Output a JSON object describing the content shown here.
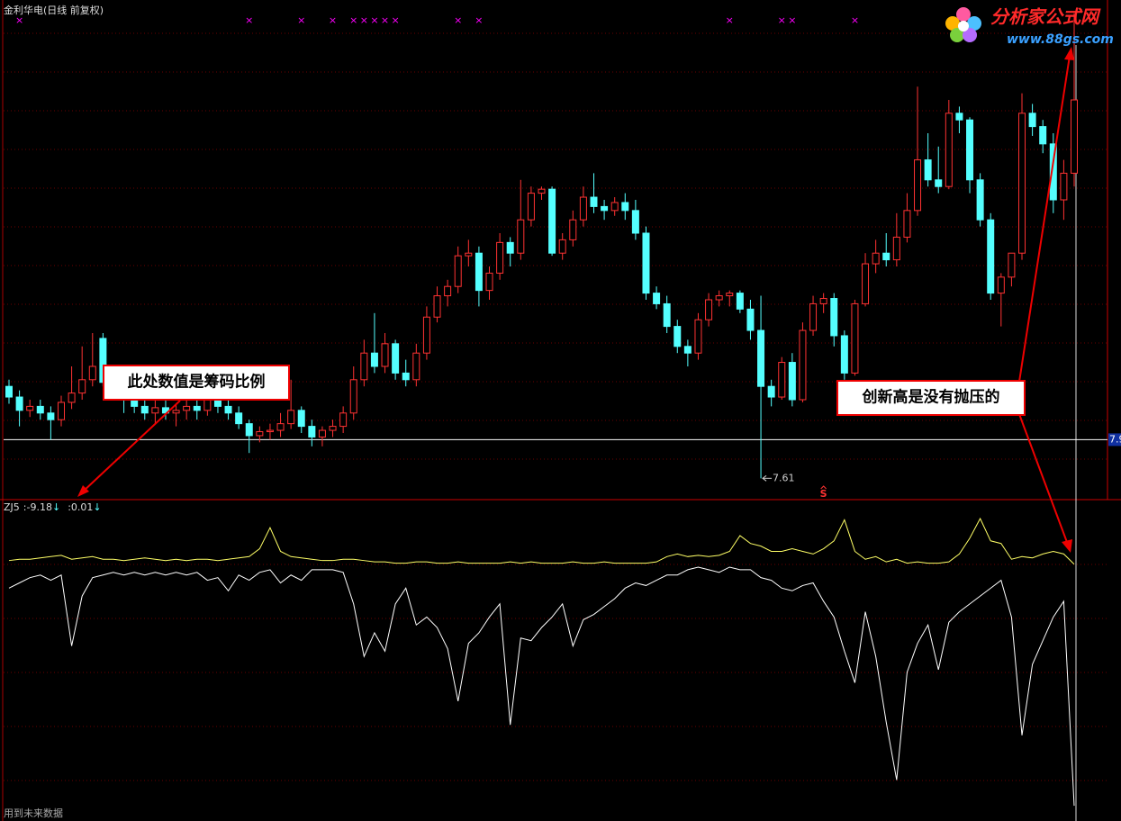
{
  "window": {
    "footer": "用到未来数据"
  },
  "annotations": [
    "此处数值是筹码比例",
    "创新高是没有抛压的"
  ],
  "logo": {
    "name": "分析家公式网",
    "url": "www.88gs.com"
  },
  "chart_data": [
    {
      "type": "candlestick",
      "title": "金利华电(日线 前复权)",
      "ylim": [
        7.45,
        11.2
      ],
      "up_color": "#ff3232",
      "down_color": "#54ffff",
      "price_line": 7.9,
      "signal_symbol": "×",
      "signal_color": "#ff00ff",
      "signal_bars": [
        1,
        23,
        28,
        31,
        33,
        34,
        35,
        36,
        37,
        43,
        45,
        69,
        74,
        75,
        81
      ],
      "sell_symbol": "S",
      "sell_bar": 78,
      "candles": [
        [
          8.3,
          8.35,
          8.17,
          8.22
        ],
        [
          8.22,
          8.27,
          8.0,
          8.12
        ],
        [
          8.12,
          8.2,
          8.07,
          8.15
        ],
        [
          8.15,
          8.2,
          8.05,
          8.1
        ],
        [
          8.1,
          8.15,
          7.9,
          8.05
        ],
        [
          8.05,
          8.23,
          8.0,
          8.18
        ],
        [
          8.18,
          8.45,
          8.13,
          8.25
        ],
        [
          8.25,
          8.6,
          8.2,
          8.35
        ],
        [
          8.35,
          8.7,
          8.3,
          8.45
        ],
        [
          8.66,
          8.7,
          8.3,
          8.33
        ],
        [
          8.33,
          8.4,
          8.25,
          8.3
        ],
        [
          8.3,
          8.35,
          8.1,
          8.2
        ],
        [
          8.2,
          8.3,
          8.1,
          8.15
        ],
        [
          8.15,
          8.2,
          8.05,
          8.1
        ],
        [
          8.1,
          8.2,
          8.02,
          8.14
        ],
        [
          8.14,
          8.22,
          8.05,
          8.1
        ],
        [
          8.1,
          8.16,
          8.0,
          8.12
        ],
        [
          8.12,
          8.2,
          8.05,
          8.15
        ],
        [
          8.15,
          8.2,
          8.05,
          8.12
        ],
        [
          8.12,
          8.25,
          8.08,
          8.2
        ],
        [
          8.2,
          8.25,
          8.1,
          8.15
        ],
        [
          8.15,
          8.2,
          8.05,
          8.1
        ],
        [
          8.1,
          8.15,
          7.98,
          8.02
        ],
        [
          8.02,
          8.05,
          7.8,
          7.93
        ],
        [
          7.93,
          8.0,
          7.88,
          7.96
        ],
        [
          7.96,
          8.02,
          7.9,
          7.97
        ],
        [
          7.97,
          8.1,
          7.92,
          8.02
        ],
        [
          8.02,
          8.35,
          7.98,
          8.12
        ],
        [
          8.12,
          8.15,
          7.95,
          8.0
        ],
        [
          8.0,
          8.05,
          7.85,
          7.92
        ],
        [
          7.92,
          8.0,
          7.85,
          7.97
        ],
        [
          7.97,
          8.05,
          7.92,
          8.0
        ],
        [
          8.0,
          8.15,
          7.95,
          8.1
        ],
        [
          8.1,
          8.45,
          8.05,
          8.35
        ],
        [
          8.35,
          8.65,
          8.3,
          8.55
        ],
        [
          8.55,
          8.85,
          8.4,
          8.45
        ],
        [
          8.45,
          8.7,
          8.4,
          8.62
        ],
        [
          8.62,
          8.65,
          8.35,
          8.4
        ],
        [
          8.4,
          8.5,
          8.3,
          8.35
        ],
        [
          8.35,
          8.62,
          8.3,
          8.55
        ],
        [
          8.55,
          8.9,
          8.5,
          8.82
        ],
        [
          8.82,
          9.05,
          8.78,
          8.98
        ],
        [
          8.98,
          9.1,
          8.9,
          9.05
        ],
        [
          9.05,
          9.35,
          9.0,
          9.28
        ],
        [
          9.28,
          9.4,
          9.2,
          9.3
        ],
        [
          9.3,
          9.35,
          8.9,
          9.02
        ],
        [
          9.02,
          9.2,
          8.95,
          9.15
        ],
        [
          9.15,
          9.45,
          9.1,
          9.38
        ],
        [
          9.38,
          9.42,
          9.2,
          9.3
        ],
        [
          9.3,
          9.85,
          9.25,
          9.55
        ],
        [
          9.55,
          9.8,
          9.5,
          9.75
        ],
        [
          9.75,
          9.8,
          9.7,
          9.78
        ],
        [
          9.78,
          9.8,
          9.28,
          9.3
        ],
        [
          9.3,
          9.45,
          9.25,
          9.4
        ],
        [
          9.4,
          9.62,
          9.35,
          9.55
        ],
        [
          9.55,
          9.8,
          9.5,
          9.72
        ],
        [
          9.72,
          9.9,
          9.6,
          9.65
        ],
        [
          9.65,
          9.7,
          9.55,
          9.62
        ],
        [
          9.62,
          9.72,
          9.58,
          9.68
        ],
        [
          9.68,
          9.75,
          9.55,
          9.62
        ],
        [
          9.62,
          9.7,
          9.4,
          9.45
        ],
        [
          9.45,
          9.5,
          8.95,
          9.0
        ],
        [
          9.0,
          9.05,
          8.88,
          8.92
        ],
        [
          8.92,
          8.98,
          8.7,
          8.75
        ],
        [
          8.75,
          8.8,
          8.55,
          8.6
        ],
        [
          8.6,
          8.65,
          8.45,
          8.55
        ],
        [
          8.55,
          8.85,
          8.5,
          8.8
        ],
        [
          8.8,
          9.0,
          8.75,
          8.95
        ],
        [
          8.95,
          9.02,
          8.9,
          8.98
        ],
        [
          8.98,
          9.02,
          8.9,
          9.0
        ],
        [
          9.0,
          9.02,
          8.85,
          8.88
        ],
        [
          8.88,
          8.95,
          8.65,
          8.72
        ],
        [
          8.72,
          8.98,
          7.61,
          8.3
        ],
        [
          8.3,
          8.35,
          8.15,
          8.22
        ],
        [
          8.22,
          8.52,
          8.2,
          8.48
        ],
        [
          8.48,
          8.55,
          8.15,
          8.2
        ],
        [
          8.2,
          8.78,
          8.18,
          8.72
        ],
        [
          8.72,
          8.98,
          8.68,
          8.92
        ],
        [
          8.92,
          9.0,
          8.85,
          8.96
        ],
        [
          8.96,
          9.0,
          8.6,
          8.68
        ],
        [
          8.68,
          8.72,
          8.35,
          8.4
        ],
        [
          8.4,
          8.95,
          8.38,
          8.92
        ],
        [
          8.92,
          9.3,
          8.9,
          9.22
        ],
        [
          9.22,
          9.4,
          9.15,
          9.3
        ],
        [
          9.3,
          9.45,
          9.2,
          9.25
        ],
        [
          9.25,
          9.6,
          9.2,
          9.42
        ],
        [
          9.42,
          9.75,
          9.38,
          9.62
        ],
        [
          9.62,
          10.55,
          9.58,
          10.0
        ],
        [
          10.0,
          10.2,
          9.8,
          9.85
        ],
        [
          9.85,
          10.1,
          9.75,
          9.8
        ],
        [
          9.8,
          10.45,
          9.78,
          10.35
        ],
        [
          10.35,
          10.4,
          10.2,
          10.3
        ],
        [
          10.3,
          10.32,
          9.75,
          9.85
        ],
        [
          9.85,
          9.9,
          9.5,
          9.55
        ],
        [
          9.55,
          9.6,
          8.95,
          9.0
        ],
        [
          9.0,
          9.15,
          8.75,
          9.12
        ],
        [
          9.12,
          9.3,
          9.05,
          9.3
        ],
        [
          9.3,
          10.5,
          9.25,
          10.35
        ],
        [
          10.35,
          10.42,
          10.18,
          10.25
        ],
        [
          10.25,
          10.3,
          10.05,
          10.12
        ],
        [
          10.12,
          10.2,
          9.6,
          9.7
        ],
        [
          9.7,
          10.0,
          9.55,
          9.9
        ],
        [
          9.9,
          11.1,
          9.8,
          10.45
        ]
      ]
    },
    {
      "type": "line",
      "title": "ZJ5",
      "separator": ":",
      "arrow": "↓",
      "arrow_color": "#54ffff",
      "ylim": [
        -9.76,
        2.4
      ],
      "series": [
        {
          "color": "#ffffff",
          "values": [
            -0.9,
            -0.7,
            -0.5,
            -0.4,
            -0.6,
            -0.4,
            -3.1,
            -1.2,
            -0.5,
            -0.4,
            -0.3,
            -0.4,
            -0.3,
            -0.4,
            -0.3,
            -0.4,
            -0.3,
            -0.4,
            -0.3,
            -0.6,
            -0.5,
            -1.0,
            -0.4,
            -0.6,
            -0.3,
            -0.2,
            -0.7,
            -0.4,
            -0.6,
            -0.2,
            -0.2,
            -0.2,
            -0.3,
            -1.5,
            -3.5,
            -2.6,
            -3.3,
            -1.5,
            -0.9,
            -2.3,
            -2.0,
            -2.4,
            -3.2,
            -5.2,
            -3.0,
            -2.6,
            -2.0,
            -1.5,
            -6.1,
            -2.8,
            -2.9,
            -2.4,
            -2.0,
            -1.5,
            -3.1,
            -2.1,
            -1.9,
            -1.6,
            -1.3,
            -0.9,
            -0.7,
            -0.8,
            -0.6,
            -0.4,
            -0.4,
            -0.2,
            -0.1,
            -0.2,
            -0.3,
            -0.1,
            -0.2,
            -0.2,
            -0.5,
            -0.6,
            -0.9,
            -1.0,
            -0.8,
            -0.7,
            -1.4,
            -2.0,
            -3.3,
            -4.5,
            -1.8,
            -3.5,
            -6.0,
            -8.2,
            -4.1,
            -3.0,
            -2.3,
            -4.0,
            -2.2,
            -1.8,
            -1.5,
            -1.2,
            -0.9,
            -0.6,
            -2.0,
            -6.5,
            -3.8,
            -2.9,
            -2.0,
            -1.4,
            -9.18
          ]
        },
        {
          "color": "#ffff66",
          "values": [
            0.15,
            0.2,
            0.2,
            0.25,
            0.3,
            0.35,
            0.2,
            0.25,
            0.3,
            0.2,
            0.2,
            0.15,
            0.2,
            0.25,
            0.2,
            0.15,
            0.2,
            0.15,
            0.2,
            0.2,
            0.15,
            0.2,
            0.25,
            0.3,
            0.6,
            1.4,
            0.5,
            0.3,
            0.25,
            0.2,
            0.15,
            0.15,
            0.2,
            0.2,
            0.15,
            0.1,
            0.1,
            0.05,
            0.05,
            0.1,
            0.1,
            0.05,
            0.05,
            0.1,
            0.05,
            0.05,
            0.05,
            0.05,
            0.1,
            0.05,
            0.1,
            0.05,
            0.05,
            0.05,
            0.1,
            0.05,
            0.05,
            0.1,
            0.05,
            0.05,
            0.05,
            0.05,
            0.1,
            0.3,
            0.4,
            0.3,
            0.35,
            0.3,
            0.35,
            0.5,
            1.1,
            0.8,
            0.7,
            0.5,
            0.5,
            0.6,
            0.5,
            0.4,
            0.6,
            0.9,
            1.7,
            0.5,
            0.2,
            0.3,
            0.1,
            0.2,
            0.05,
            0.1,
            0.05,
            0.05,
            0.1,
            0.4,
            1.0,
            1.75,
            0.9,
            0.8,
            0.2,
            0.3,
            0.25,
            0.4,
            0.5,
            0.4,
            0.01
          ]
        }
      ]
    }
  ]
}
